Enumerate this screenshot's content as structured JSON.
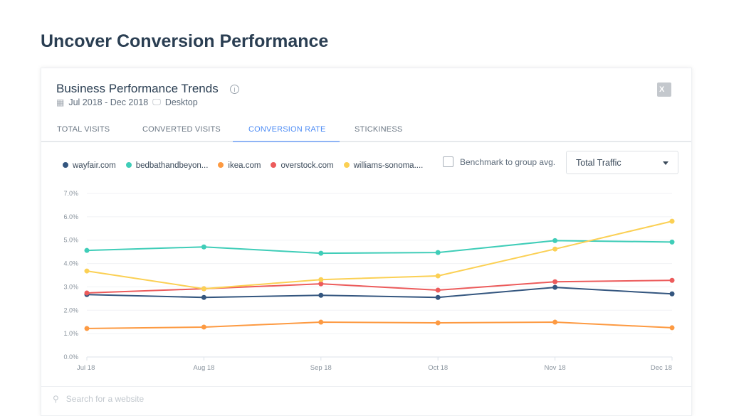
{
  "page_title": "Uncover Conversion Performance",
  "card": {
    "title": "Business Performance Trends",
    "date_range": "Jul 2018 - Dec 2018",
    "device": "Desktop",
    "export_icon": "excel-icon"
  },
  "tabs": [
    {
      "label": "TOTAL VISITS"
    },
    {
      "label": "CONVERTED VISITS"
    },
    {
      "label": "CONVERSION RATE",
      "active": true
    },
    {
      "label": "STICKINESS"
    }
  ],
  "controls": {
    "benchmark_label": "Benchmark to group avg.",
    "benchmark_checked": false,
    "traffic_select": "Total Traffic"
  },
  "search": {
    "placeholder": "Search for a website"
  },
  "chart_data": {
    "type": "line",
    "categories": [
      "Jul 18",
      "Aug 18",
      "Sep 18",
      "Oct 18",
      "Nov 18",
      "Dec 18"
    ],
    "yticks": [
      "0.0%",
      "1.0%",
      "2.0%",
      "3.0%",
      "4.0%",
      "5.0%",
      "6.0%",
      "7.0%"
    ],
    "ylim": [
      0,
      7
    ],
    "yunit": "%",
    "grid": true,
    "legend": "top-left",
    "series": [
      {
        "name": "wayfair.com",
        "color": "#34567f",
        "values": [
          2.67,
          2.55,
          2.64,
          2.55,
          2.98,
          2.7
        ]
      },
      {
        "name": "bedbathandbeyon...",
        "color": "#3fcdb8",
        "values": [
          4.56,
          4.71,
          4.44,
          4.47,
          4.98,
          4.92
        ]
      },
      {
        "name": "ikea.com",
        "color": "#fd9a42",
        "values": [
          1.22,
          1.28,
          1.49,
          1.46,
          1.49,
          1.25
        ]
      },
      {
        "name": "overstock.com",
        "color": "#ec5b5b",
        "values": [
          2.74,
          2.92,
          3.13,
          2.86,
          3.22,
          3.28
        ]
      },
      {
        "name": "williams-sonoma....",
        "color": "#fbd054",
        "values": [
          3.68,
          2.92,
          3.31,
          3.47,
          4.62,
          5.81
        ]
      }
    ]
  }
}
